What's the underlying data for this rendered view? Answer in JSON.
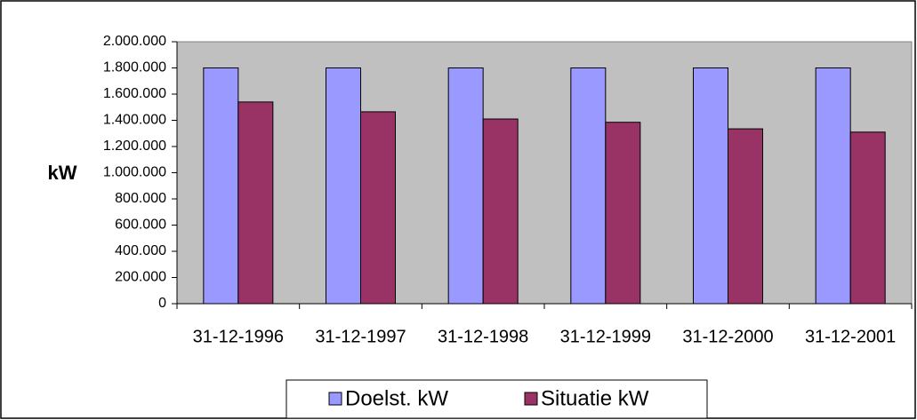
{
  "chart_data": {
    "type": "bar",
    "y_label": "kW",
    "categories": [
      "31-12-1996",
      "31-12-1997",
      "31-12-1998",
      "31-12-1999",
      "31-12-2000",
      "31-12-2001"
    ],
    "series": [
      {
        "name": "Doelst. kW",
        "color": "#9999ff",
        "values": [
          1800000,
          1800000,
          1800000,
          1800000,
          1800000,
          1800000
        ]
      },
      {
        "name": "Situatie kW",
        "color": "#993366",
        "values": [
          1540000,
          1465000,
          1410000,
          1385000,
          1335000,
          1310000
        ]
      }
    ],
    "ylim": [
      0,
      2000000
    ],
    "yticks": [
      0,
      {
        "value": 200000,
        "label": "200.000"
      },
      {
        "value": 400000,
        "label": "400.000"
      },
      {
        "value": 600000,
        "label": "600.000"
      },
      {
        "value": 800000,
        "label": "800.000"
      },
      {
        "value": 1000000,
        "label": "1.000.000"
      },
      {
        "value": 1200000,
        "label": "1.200.000"
      },
      {
        "value": 1400000,
        "label": "1.400.000"
      },
      {
        "value": 1600000,
        "label": "1.600.000"
      },
      {
        "value": 1800000,
        "label": "1.800.000"
      },
      {
        "value": 2000000,
        "label": "2.000.000"
      }
    ],
    "grid": false,
    "plot_background": "#c0c0c0",
    "legend": "bottom"
  }
}
